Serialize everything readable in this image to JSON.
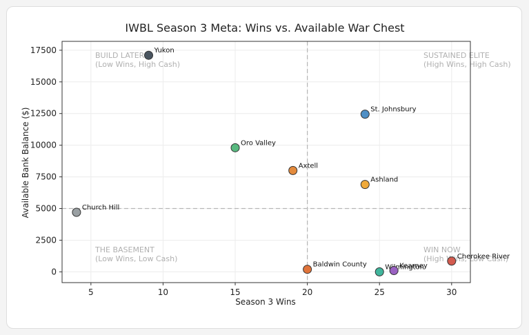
{
  "chart_data": {
    "type": "scatter",
    "title": "IWBL Season 3 Meta: Wins vs. Available War Chest",
    "xlabel": "Season 3 Wins",
    "ylabel": "Available Bank Balance ($)",
    "xlim": [
      3,
      31.3
    ],
    "ylim": [
      -850,
      18200
    ],
    "xticks": [
      5,
      10,
      15,
      20,
      25,
      30
    ],
    "yticks": [
      0,
      2500,
      5000,
      7500,
      10000,
      12500,
      15000,
      17500
    ],
    "grid": true,
    "reference_lines": {
      "x": 20,
      "y": 5000
    },
    "quadrants": [
      {
        "title": "BUILD LATER",
        "subtitle": "(Low Wins, High Cash)",
        "position": "top-left"
      },
      {
        "title": "SUSTAINED ELITE",
        "subtitle": "(High Wins, High Cash)",
        "position": "top-right"
      },
      {
        "title": "THE BASEMENT",
        "subtitle": "(Low Wins, Low Cash)",
        "position": "bottom-left"
      },
      {
        "title": "WIN NOW",
        "subtitle": "(High Wins, Low Cash)",
        "position": "bottom-right"
      }
    ],
    "points": [
      {
        "label": "Yukon",
        "x": 9,
        "y": 17100,
        "color": "#4a5560"
      },
      {
        "label": "St. Johnsbury",
        "x": 24,
        "y": 12450,
        "color": "#4f8fc5"
      },
      {
        "label": "Oro Valley",
        "x": 15,
        "y": 9800,
        "color": "#58b97f"
      },
      {
        "label": "Axtell",
        "x": 19,
        "y": 8000,
        "color": "#e38a3c"
      },
      {
        "label": "Ashland",
        "x": 24,
        "y": 6900,
        "color": "#f0aa3b"
      },
      {
        "label": "Church Hill",
        "x": 4,
        "y": 4700,
        "color": "#9aa0a3"
      },
      {
        "label": "Baldwin County",
        "x": 20,
        "y": 200,
        "color": "#e0743b"
      },
      {
        "label": "Wilmington",
        "x": 25,
        "y": 0,
        "color": "#40b59c"
      },
      {
        "label": "Kearney",
        "x": 26,
        "y": 100,
        "color": "#9a62c2"
      },
      {
        "label": "Cherokee River",
        "x": 30,
        "y": 850,
        "color": "#d35b4f"
      }
    ]
  }
}
